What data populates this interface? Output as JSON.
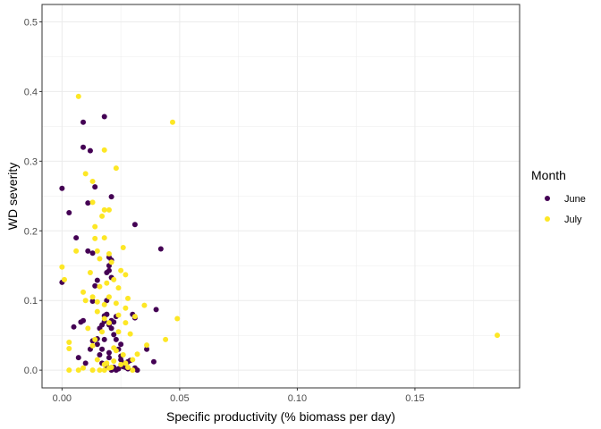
{
  "chart_data": {
    "type": "scatter",
    "xlabel": "Specific productivity (% biomass per day)",
    "ylabel": "WD severity",
    "xlim": [
      -0.0085,
      0.1945
    ],
    "ylim": [
      -0.0255,
      0.525
    ],
    "x_ticks": [
      0.0,
      0.05,
      0.1,
      0.15
    ],
    "x_tick_labels": [
      "0.00",
      "0.05",
      "0.10",
      "0.15"
    ],
    "y_ticks": [
      0.0,
      0.1,
      0.2,
      0.3,
      0.4,
      0.5
    ],
    "y_tick_labels": [
      "0.0",
      "0.1",
      "0.2",
      "0.3",
      "0.4",
      "0.5"
    ],
    "grid": true,
    "legend": {
      "title": "Month",
      "position": "right"
    },
    "series": [
      {
        "name": "June",
        "color": "#440154",
        "points": [
          [
            0.0,
            0.261
          ],
          [
            0.0,
            0.126
          ],
          [
            0.003,
            0.226
          ],
          [
            0.006,
            0.19
          ],
          [
            0.009,
            0.356
          ],
          [
            0.009,
            0.32
          ],
          [
            0.011,
            0.24
          ],
          [
            0.012,
            0.315
          ],
          [
            0.014,
            0.263
          ],
          [
            0.018,
            0.364
          ],
          [
            0.02,
            0.15
          ],
          [
            0.021,
            0.249
          ],
          [
            0.031,
            0.209
          ],
          [
            0.042,
            0.174
          ],
          [
            0.04,
            0.087
          ],
          [
            0.011,
            0.171
          ],
          [
            0.013,
            0.168
          ],
          [
            0.015,
            0.129
          ],
          [
            0.014,
            0.121
          ],
          [
            0.013,
            0.099
          ],
          [
            0.009,
            0.071
          ],
          [
            0.008,
            0.069
          ],
          [
            0.005,
            0.062
          ],
          [
            0.007,
            0.018
          ],
          [
            0.01,
            0.01
          ],
          [
            0.012,
            0.03
          ],
          [
            0.013,
            0.042
          ],
          [
            0.015,
            0.037
          ],
          [
            0.016,
            0.06
          ],
          [
            0.017,
            0.065
          ],
          [
            0.018,
            0.078
          ],
          [
            0.018,
            0.07
          ],
          [
            0.019,
            0.08
          ],
          [
            0.019,
            0.14
          ],
          [
            0.02,
            0.143
          ],
          [
            0.021,
            0.133
          ],
          [
            0.021,
            0.158
          ],
          [
            0.02,
            0.162
          ],
          [
            0.019,
            0.08
          ],
          [
            0.021,
            0.071
          ],
          [
            0.022,
            0.069
          ],
          [
            0.02,
            0.065
          ],
          [
            0.021,
            0.06
          ],
          [
            0.022,
            0.051
          ],
          [
            0.023,
            0.044
          ],
          [
            0.024,
            0.03
          ],
          [
            0.025,
            0.02
          ],
          [
            0.025,
            0.015
          ],
          [
            0.026,
            0.01
          ],
          [
            0.027,
            0.004
          ],
          [
            0.028,
            0.002
          ],
          [
            0.029,
            0.014
          ],
          [
            0.03,
            0.08
          ],
          [
            0.031,
            0.075
          ],
          [
            0.031,
            0.003
          ],
          [
            0.032,
            0.0
          ],
          [
            0.036,
            0.03
          ],
          [
            0.039,
            0.012
          ],
          [
            0.023,
            0.077
          ],
          [
            0.025,
            0.037
          ],
          [
            0.022,
            0.004
          ],
          [
            0.021,
            0.0
          ],
          [
            0.023,
            0.0
          ],
          [
            0.024,
            0.002
          ],
          [
            0.026,
            0.005
          ],
          [
            0.019,
            0.1
          ],
          [
            0.018,
            0.044
          ],
          [
            0.017,
            0.03
          ],
          [
            0.015,
            0.045
          ],
          [
            0.017,
            0.01
          ],
          [
            0.019,
            0.005
          ],
          [
            0.02,
            0.018
          ],
          [
            0.02,
            0.025
          ],
          [
            0.016,
            0.022
          ],
          [
            0.028,
            0.012
          ]
        ]
      },
      {
        "name": "July",
        "color": "#FDE725",
        "points": [
          [
            0.007,
            0.393
          ],
          [
            0.018,
            0.316
          ],
          [
            0.047,
            0.356
          ],
          [
            0.023,
            0.29
          ],
          [
            0.01,
            0.282
          ],
          [
            0.013,
            0.271
          ],
          [
            0.018,
            0.23
          ],
          [
            0.013,
            0.241
          ],
          [
            0.017,
            0.221
          ],
          [
            0.02,
            0.23
          ],
          [
            0.018,
            0.19
          ],
          [
            0.014,
            0.206
          ],
          [
            0.014,
            0.189
          ],
          [
            0.026,
            0.176
          ],
          [
            0.015,
            0.171
          ],
          [
            0.006,
            0.171
          ],
          [
            0.02,
            0.167
          ],
          [
            0.021,
            0.155
          ],
          [
            0.016,
            0.16
          ],
          [
            0.025,
            0.143
          ],
          [
            0.027,
            0.137
          ],
          [
            0.0,
            0.148
          ],
          [
            0.001,
            0.13
          ],
          [
            0.012,
            0.14
          ],
          [
            0.022,
            0.13
          ],
          [
            0.019,
            0.125
          ],
          [
            0.016,
            0.12
          ],
          [
            0.024,
            0.118
          ],
          [
            0.009,
            0.112
          ],
          [
            0.013,
            0.105
          ],
          [
            0.01,
            0.1
          ],
          [
            0.02,
            0.105
          ],
          [
            0.028,
            0.103
          ],
          [
            0.015,
            0.098
          ],
          [
            0.018,
            0.094
          ],
          [
            0.023,
            0.096
          ],
          [
            0.035,
            0.093
          ],
          [
            0.027,
            0.089
          ],
          [
            0.015,
            0.084
          ],
          [
            0.024,
            0.079
          ],
          [
            0.031,
            0.077
          ],
          [
            0.049,
            0.074
          ],
          [
            0.018,
            0.074
          ],
          [
            0.02,
            0.068
          ],
          [
            0.027,
            0.068
          ],
          [
            0.011,
            0.06
          ],
          [
            0.017,
            0.055
          ],
          [
            0.024,
            0.055
          ],
          [
            0.029,
            0.052
          ],
          [
            0.044,
            0.044
          ],
          [
            0.014,
            0.044
          ],
          [
            0.003,
            0.04
          ],
          [
            0.003,
            0.031
          ],
          [
            0.013,
            0.035
          ],
          [
            0.022,
            0.032
          ],
          [
            0.036,
            0.036
          ],
          [
            0.032,
            0.023
          ],
          [
            0.026,
            0.022
          ],
          [
            0.185,
            0.05
          ],
          [
            0.015,
            0.015
          ],
          [
            0.019,
            0.01
          ],
          [
            0.022,
            0.013
          ],
          [
            0.025,
            0.008
          ],
          [
            0.027,
            0.01
          ],
          [
            0.028,
            0.004
          ],
          [
            0.03,
            0.0
          ],
          [
            0.021,
            0.004
          ],
          [
            0.02,
            0.003
          ],
          [
            0.018,
            0.0
          ],
          [
            0.016,
            0.0
          ],
          [
            0.013,
            0.0
          ],
          [
            0.009,
            0.003
          ],
          [
            0.007,
            0.0
          ],
          [
            0.003,
            0.0
          ],
          [
            0.023,
            0.028
          ],
          [
            0.018,
            0.008
          ],
          [
            0.03,
            0.015
          ]
        ]
      }
    ]
  }
}
